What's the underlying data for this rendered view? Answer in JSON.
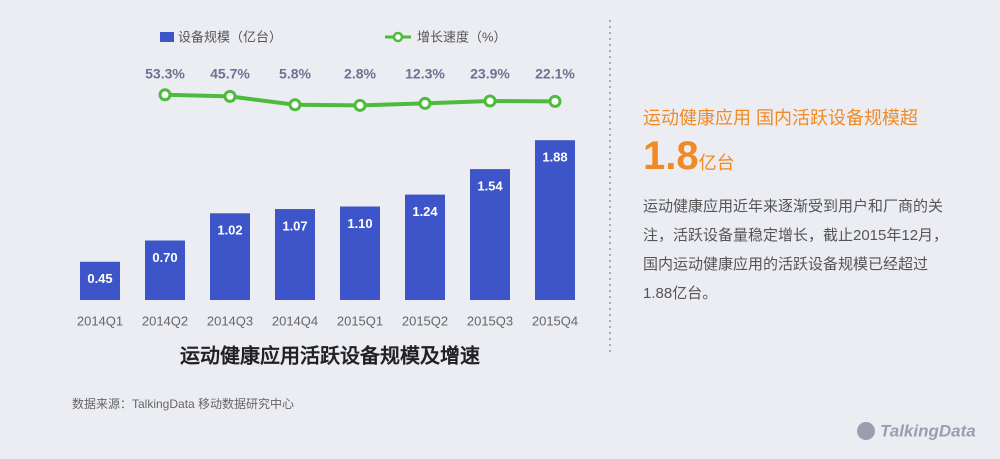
{
  "chart_data": {
    "type": "bar",
    "title": "运动健康应用活跃设备规模及增速",
    "categories": [
      "2014Q1",
      "2014Q2",
      "2014Q3",
      "2014Q4",
      "2015Q1",
      "2015Q2",
      "2015Q3",
      "2015Q4"
    ],
    "series": [
      {
        "name": "设备规模（亿台）",
        "type": "bar",
        "color": "#3d55c8",
        "values": [
          0.45,
          0.7,
          1.02,
          1.07,
          1.1,
          1.24,
          1.54,
          1.88
        ],
        "value_labels": [
          "0.45",
          "0.70",
          "1.02",
          "1.07",
          "1.10",
          "1.24",
          "1.54",
          "1.88"
        ]
      },
      {
        "name": "增长速度（%）",
        "type": "line",
        "color": "#4dbb3c",
        "values": [
          null,
          53.3,
          45.7,
          5.8,
          2.8,
          12.3,
          23.9,
          22.1
        ],
        "value_labels": [
          null,
          "53.3%",
          "45.7%",
          "5.8%",
          "2.8%",
          "12.3%",
          "23.9%",
          "22.1%"
        ]
      }
    ]
  },
  "source": "数据来源：TalkingData 移动数据研究中心",
  "side": {
    "headline": "运动健康应用 国内活跃设备规模超",
    "highlight": "1.8",
    "highlight_unit": "亿台",
    "body": "运动健康应用近年来逐渐受到用户和厂商的关注，活跃设备量稳定增长，截止2015年12月，国内运动健康应用的活跃设备规模已经超过1.88亿台。"
  },
  "logo": "TalkingData"
}
